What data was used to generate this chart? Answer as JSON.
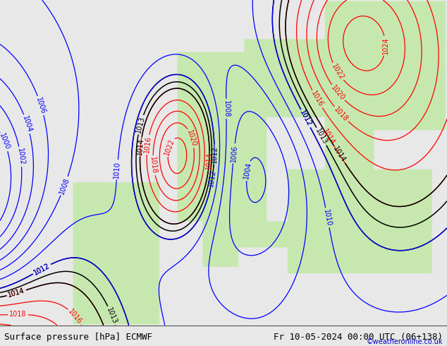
{
  "title_left": "Surface pressure [hPa] ECMWF",
  "title_right": "Fr 10-05-2024 00:00 UTC (06+138)",
  "watermark": "©weatheronline.co.uk",
  "bg_color": "#e8e8e8",
  "land_color": "#c8e8b0",
  "ocean_color": "#e8e8e8",
  "isobar_color_low": "#ff0000",
  "isobar_color_mid": "#000000",
  "isobar_color_high": "#0000ff",
  "label_fontsize": 7,
  "title_fontsize": 9,
  "watermark_fontsize": 7,
  "figsize": [
    6.34,
    4.9
  ],
  "dpi": 100
}
